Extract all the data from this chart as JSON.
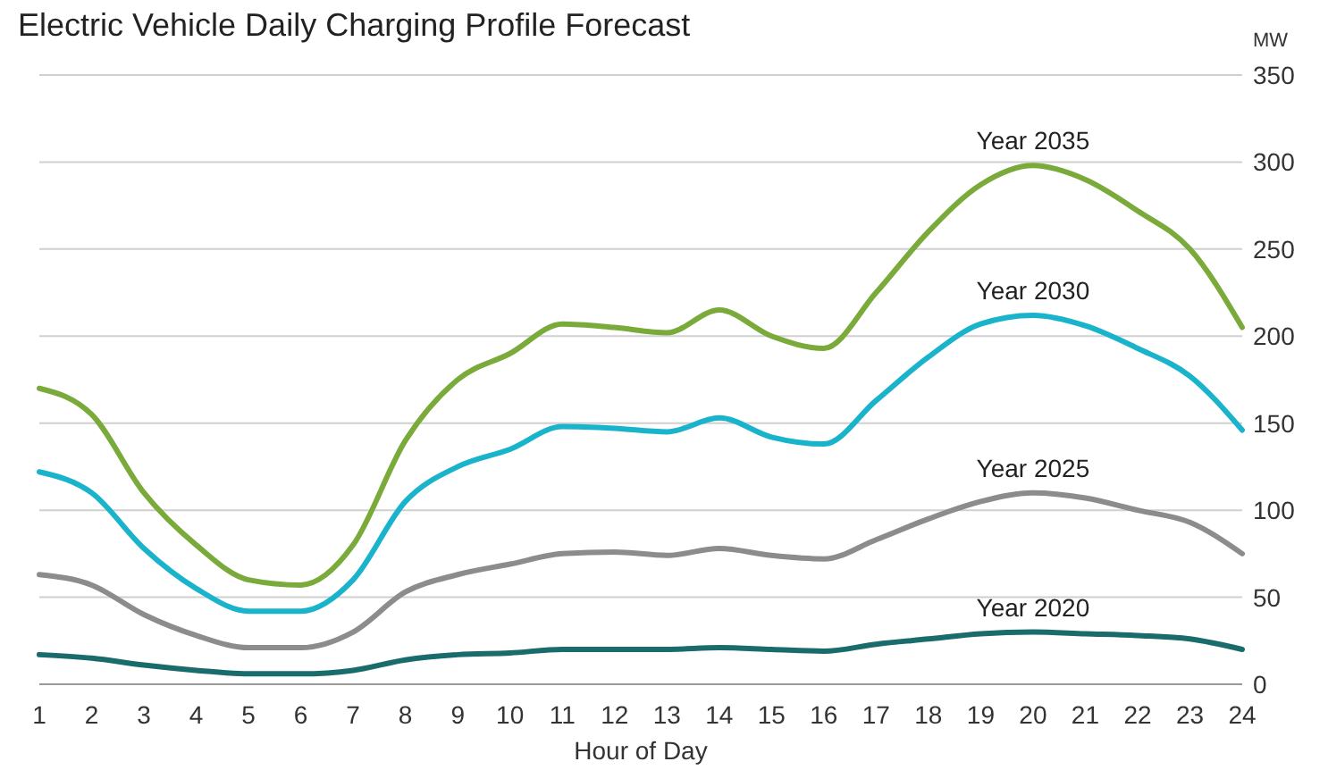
{
  "chart_data": {
    "type": "line",
    "title": "Electric Vehicle Daily Charging Profile Forecast",
    "xlabel": "Hour of Day",
    "ylabel": "MW",
    "x": [
      1,
      2,
      3,
      4,
      5,
      6,
      7,
      8,
      9,
      10,
      11,
      12,
      13,
      14,
      15,
      16,
      17,
      18,
      19,
      20,
      21,
      22,
      23,
      24
    ],
    "xlim": [
      1,
      24
    ],
    "xticks": [
      1,
      2,
      3,
      4,
      5,
      6,
      7,
      8,
      9,
      10,
      11,
      12,
      13,
      14,
      15,
      16,
      17,
      18,
      19,
      20,
      21,
      22,
      23,
      24
    ],
    "ylim": [
      0,
      350
    ],
    "yticks": [
      0,
      50,
      100,
      150,
      200,
      250,
      300,
      350
    ],
    "grid": "y",
    "legend": false,
    "marker": "none",
    "line_style": "solid",
    "series": [
      {
        "name": "Year 2035",
        "color": "#7aaa3a",
        "values": [
          170,
          155,
          110,
          80,
          60,
          57,
          80,
          140,
          175,
          190,
          207,
          205,
          202,
          215,
          200,
          193,
          225,
          260,
          287,
          298,
          290,
          272,
          250,
          205
        ]
      },
      {
        "name": "Year 2030",
        "color": "#1ab3cc",
        "values": [
          122,
          110,
          78,
          55,
          42,
          42,
          60,
          105,
          125,
          135,
          148,
          147,
          145,
          153,
          142,
          138,
          163,
          188,
          207,
          212,
          206,
          193,
          177,
          146
        ]
      },
      {
        "name": "Year 2025",
        "color": "#8c8c8c",
        "values": [
          63,
          57,
          40,
          28,
          21,
          21,
          30,
          53,
          63,
          69,
          75,
          76,
          74,
          78,
          74,
          72,
          83,
          95,
          105,
          110,
          107,
          100,
          93,
          75
        ]
      },
      {
        "name": "Year 2020",
        "color": "#1a6b6b",
        "values": [
          17,
          15,
          11,
          8,
          6,
          6,
          8,
          14,
          17,
          18,
          20,
          20,
          20,
          21,
          20,
          19,
          23,
          26,
          29,
          30,
          29,
          28,
          26,
          20
        ]
      }
    ]
  }
}
